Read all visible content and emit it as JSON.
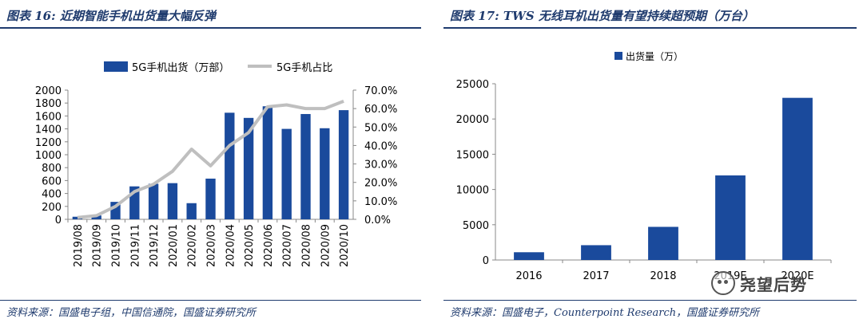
{
  "left": {
    "title": "图表 16:  近期智能手机出货量大幅反弹",
    "source": "资料来源：国盛电子组，中国信通院，国盛证券研究所"
  },
  "right": {
    "title": "图表 17:  TWS 无线耳机出货量有望持续超预期（万台）",
    "source": "资料来源：国盛电子，Counterpoint Research，国盛证券研究所"
  },
  "watermark": {
    "text": "尧望后势",
    "icon": "wechat-icon"
  },
  "colors": {
    "bar": "#1a4a9c",
    "line": "#bfbfbf",
    "title": "#1f3b6e"
  },
  "chart_data": [
    {
      "type": "bar+line",
      "categories": [
        "2019/08",
        "2019/09",
        "2019/10",
        "2019/11",
        "2019/12",
        "2020/01",
        "2020/02",
        "2020/03",
        "2020/04",
        "2020/05",
        "2020/06",
        "2020/07",
        "2020/08",
        "2020/09",
        "2020/10"
      ],
      "series": [
        {
          "name": "5G手机出货（万部）",
          "type": "bar",
          "axis": "left",
          "values": [
            40,
            60,
            270,
            510,
            550,
            560,
            250,
            630,
            1650,
            1570,
            1750,
            1400,
            1630,
            1410,
            1690
          ]
        },
        {
          "name": "5G手机占比",
          "type": "line",
          "axis": "right",
          "values": [
            1.0,
            2.0,
            7.0,
            15.0,
            19.0,
            26.0,
            38.0,
            29.0,
            40.0,
            47.0,
            61.0,
            62.0,
            60.0,
            60.0,
            64.0
          ]
        }
      ],
      "ylim_left": [
        0,
        2000
      ],
      "yticks_left": [
        "0",
        "200",
        "400",
        "600",
        "800",
        "1000",
        "1200",
        "1400",
        "1600",
        "1800",
        "2000"
      ],
      "ylim_right": [
        0,
        70
      ],
      "yticks_right": [
        "0.0%",
        "10.0%",
        "20.0%",
        "30.0%",
        "40.0%",
        "50.0%",
        "60.0%",
        "70.0%"
      ],
      "legend": "top"
    },
    {
      "type": "bar",
      "categories": [
        "2016",
        "2017",
        "2018",
        "2019E",
        "2020E"
      ],
      "series": [
        {
          "name": "出货量（万）",
          "values": [
            1100,
            2100,
            4700,
            12000,
            23000
          ]
        }
      ],
      "ylim": [
        0,
        25000
      ],
      "yticks": [
        "0",
        "5000",
        "10000",
        "15000",
        "20000",
        "25000"
      ],
      "legend": "top-left"
    }
  ]
}
